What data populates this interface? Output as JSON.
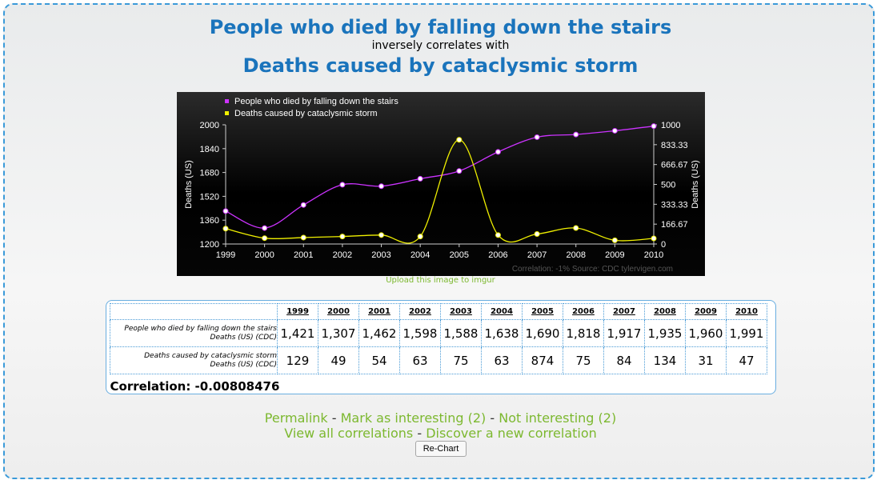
{
  "header": {
    "title_top": "People who died by falling down the stairs",
    "connector": "inversely correlates with",
    "title_bottom": "Deaths caused by cataclysmic storm"
  },
  "chart_data": {
    "type": "line",
    "x": [
      "1999",
      "2000",
      "2001",
      "2002",
      "2003",
      "2004",
      "2005",
      "2006",
      "2007",
      "2008",
      "2009",
      "2010"
    ],
    "series": [
      {
        "name": "People who died by falling down the stairs",
        "axis": "left",
        "color": "#cc33ff",
        "values": [
          1421,
          1307,
          1462,
          1598,
          1588,
          1638,
          1690,
          1818,
          1917,
          1935,
          1960,
          1991
        ]
      },
      {
        "name": "Deaths caused by cataclysmic storm",
        "axis": "right",
        "color": "#f0f000",
        "values": [
          129,
          49,
          54,
          63,
          75,
          63,
          874,
          75,
          84,
          134,
          31,
          47
        ]
      }
    ],
    "ylabel_left": "Deaths (US)",
    "ylabel_right": "Deaths (US)",
    "ylim_left": [
      1200,
      2000
    ],
    "ylim_right": [
      0,
      1000
    ],
    "yticks_left": [
      "1200",
      "1360",
      "1520",
      "1680",
      "1840",
      "2000"
    ],
    "yticks_right": [
      "0",
      "166.67",
      "333.33",
      "500",
      "666.67",
      "833.33",
      "1000"
    ],
    "legend_position": "top-left",
    "footer_note": "Correlation: -1%    Source: CDC   tylervigen.com",
    "background": "#000000"
  },
  "upload_link": "Upload this image to imgur",
  "table": {
    "years": [
      "1999",
      "2000",
      "2001",
      "2002",
      "2003",
      "2004",
      "2005",
      "2006",
      "2007",
      "2008",
      "2009",
      "2010"
    ],
    "rows": [
      {
        "label": "People who died by falling down the stairs",
        "unit": "Deaths (US) (CDC)",
        "values": [
          "1,421",
          "1,307",
          "1,462",
          "1,598",
          "1,588",
          "1,638",
          "1,690",
          "1,818",
          "1,917",
          "1,935",
          "1,960",
          "1,991"
        ]
      },
      {
        "label": "Deaths caused by cataclysmic storm",
        "unit": "Deaths (US) (CDC)",
        "values": [
          "129",
          "49",
          "54",
          "63",
          "75",
          "63",
          "874",
          "75",
          "84",
          "134",
          "31",
          "47"
        ]
      }
    ],
    "correlation": "Correlation: -0.00808476"
  },
  "links": {
    "permalink": "Permalink",
    "mark_interesting": "Mark as interesting (2)",
    "not_interesting": "Not interesting (2)",
    "view_all": "View all correlations",
    "discover": "Discover a new correlation",
    "sep": " - "
  },
  "buttons": {
    "rechart": "Re-Chart"
  }
}
